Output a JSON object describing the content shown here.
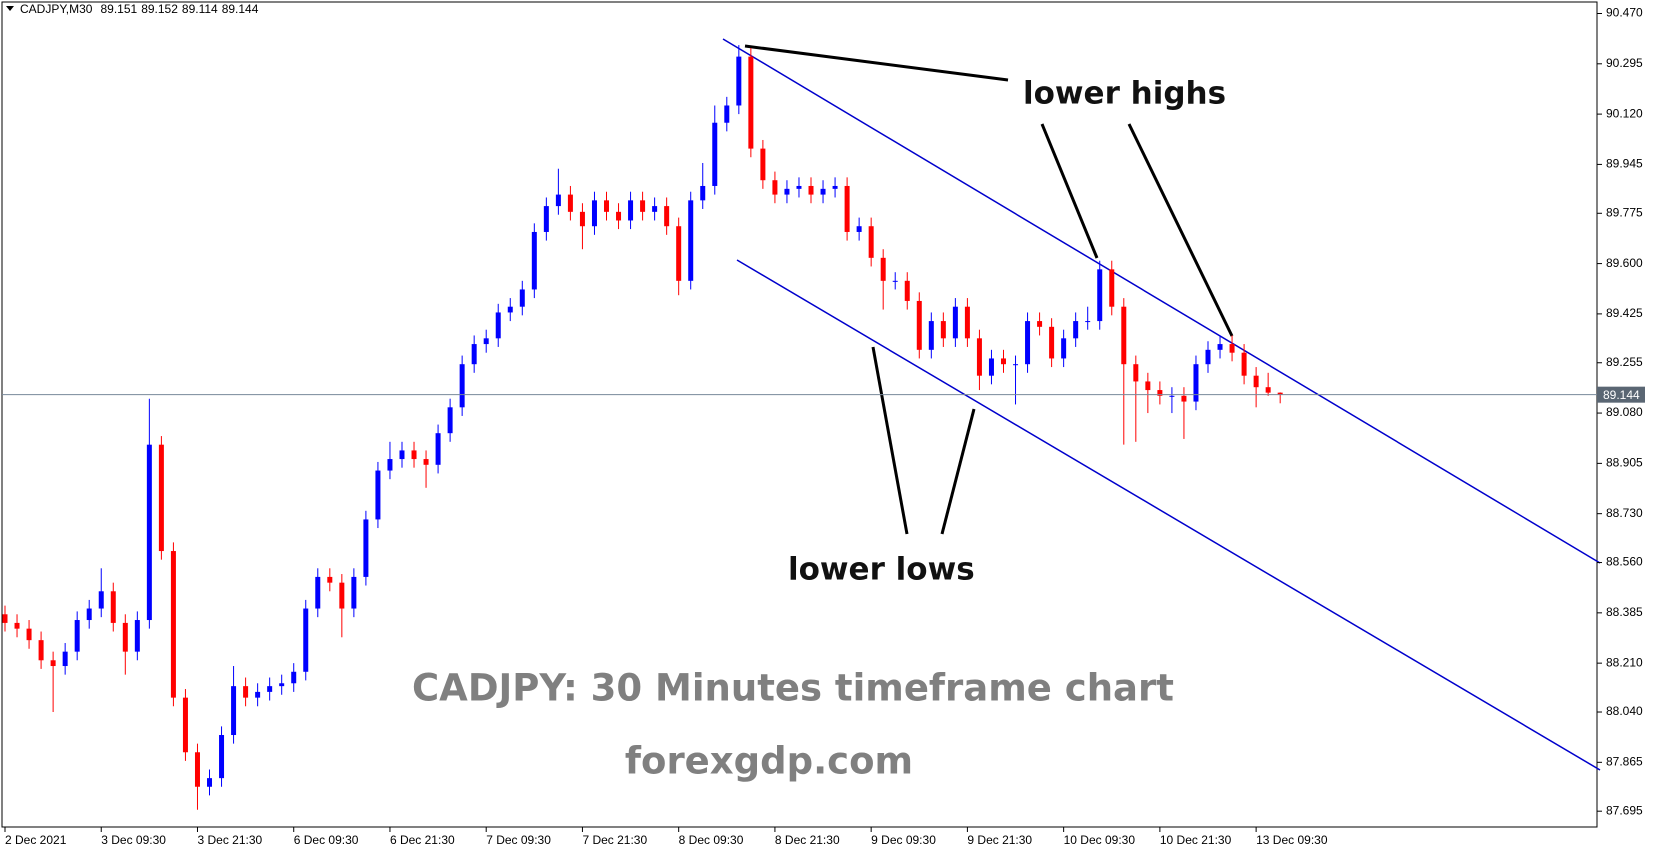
{
  "chart_data": {
    "type": "candlestick",
    "symbol": "CADJPY,M30",
    "annotations": [
      "lower highs",
      "lower lows",
      "CADJPY: 30 Minutes timeframe chart",
      "forexgdp.com"
    ],
    "up_color": "#0000ff",
    "down_color": "#ff0000",
    "ylim": [
      87.64,
      90.51
    ],
    "yticks": [
      {
        "value": 90.47,
        "label": "90.470"
      },
      90.295,
      {
        "value": 90.12,
        "label": "90.120"
      },
      89.945,
      89.775,
      {
        "value": 89.6,
        "label": "89.600"
      },
      89.425,
      89.255,
      {
        "value": 89.08,
        "label": "89.080"
      },
      88.905,
      {
        "value": 88.73,
        "label": "88.730"
      },
      {
        "value": 88.56,
        "label": "88.560"
      },
      88.385,
      {
        "value": 88.21,
        "label": "88.210"
      },
      {
        "value": 88.04,
        "label": "88.040"
      },
      87.865,
      87.695
    ],
    "categories": [
      "2 Dec 2021",
      null,
      null,
      null,
      null,
      null,
      null,
      null,
      "3 Dec 09:30",
      null,
      null,
      null,
      null,
      null,
      null,
      null,
      "3 Dec 21:30",
      null,
      null,
      null,
      null,
      null,
      null,
      null,
      "6 Dec 09:30",
      null,
      null,
      null,
      null,
      null,
      null,
      null,
      "6 Dec 21:30",
      null,
      null,
      null,
      null,
      null,
      null,
      null,
      "7 Dec 09:30",
      null,
      null,
      null,
      null,
      null,
      null,
      null,
      "7 Dec 21:30",
      null,
      null,
      null,
      null,
      null,
      null,
      null,
      "8 Dec 09:30",
      null,
      null,
      null,
      null,
      null,
      null,
      null,
      "8 Dec 21:30",
      null,
      null,
      null,
      null,
      null,
      null,
      null,
      "9 Dec 09:30",
      null,
      null,
      null,
      null,
      null,
      null,
      null,
      "9 Dec 21:30",
      null,
      null,
      null,
      null,
      null,
      null,
      null,
      "10 Dec 09:30",
      null,
      null,
      null,
      null,
      null,
      null,
      null,
      "10 Dec 21:30",
      null,
      null,
      null,
      null,
      null,
      null,
      null,
      "13 Dec 09:30",
      null,
      null
    ],
    "open": [
      88.38,
      88.35,
      88.33,
      88.29,
      88.22,
      88.2,
      88.25,
      88.36,
      88.4,
      88.46,
      88.35,
      88.25,
      88.36,
      88.97,
      88.6,
      88.09,
      87.9,
      87.78,
      87.81,
      87.96,
      88.13,
      88.09,
      88.11,
      88.13,
      88.14,
      88.18,
      88.4,
      88.51,
      88.49,
      88.4,
      88.51,
      88.71,
      88.88,
      88.92,
      88.95,
      88.92,
      88.9,
      89.01,
      89.1,
      89.25,
      89.32,
      89.34,
      89.43,
      89.45,
      89.51,
      89.71,
      89.8,
      89.84,
      89.78,
      89.73,
      89.82,
      89.78,
      89.75,
      89.82,
      89.78,
      89.8,
      89.73,
      89.54,
      89.82,
      89.87,
      90.09,
      90.15,
      90.32,
      90.0,
      89.89,
      89.84,
      89.86,
      89.87,
      89.84,
      89.86,
      89.87,
      89.71,
      89.73,
      89.62,
      89.54,
      89.54,
      89.47,
      89.3,
      89.4,
      89.34,
      89.45,
      89.34,
      89.21,
      89.27,
      89.25,
      89.25,
      89.4,
      89.38,
      89.27,
      89.34,
      89.4,
      89.4,
      89.58,
      89.45,
      89.25,
      89.19,
      89.16,
      89.14,
      89.14,
      89.12,
      89.25,
      89.3,
      89.32,
      89.29,
      89.21,
      89.17,
      89.151
    ],
    "high": [
      88.41,
      88.38,
      88.36,
      88.32,
      88.25,
      88.28,
      88.39,
      88.43,
      88.54,
      88.49,
      88.38,
      88.39,
      89.13,
      89.0,
      88.63,
      88.12,
      87.93,
      87.84,
      87.99,
      88.2,
      88.16,
      88.14,
      88.16,
      88.17,
      88.21,
      88.43,
      88.54,
      88.54,
      88.52,
      88.54,
      88.74,
      88.91,
      88.98,
      88.98,
      88.98,
      88.95,
      89.04,
      89.13,
      89.28,
      89.35,
      89.37,
      89.46,
      89.48,
      89.54,
      89.74,
      89.83,
      89.93,
      89.87,
      89.81,
      89.85,
      89.85,
      89.81,
      89.85,
      89.85,
      89.83,
      89.83,
      89.76,
      89.85,
      89.95,
      90.15,
      90.18,
      90.36,
      90.35,
      90.03,
      89.92,
      89.89,
      89.9,
      89.9,
      89.89,
      89.9,
      89.9,
      89.76,
      89.76,
      89.65,
      89.57,
      89.57,
      89.5,
      89.43,
      89.43,
      89.48,
      89.48,
      89.37,
      89.3,
      89.3,
      89.28,
      89.43,
      89.43,
      89.41,
      89.37,
      89.43,
      89.45,
      89.61,
      89.61,
      89.48,
      89.28,
      89.22,
      89.19,
      89.17,
      89.17,
      89.28,
      89.33,
      89.35,
      89.35,
      89.32,
      89.24,
      89.22,
      89.152
    ],
    "low": [
      88.32,
      88.3,
      88.26,
      88.19,
      88.04,
      88.17,
      88.22,
      88.33,
      88.37,
      88.32,
      88.17,
      88.22,
      88.33,
      88.57,
      88.06,
      87.87,
      87.7,
      87.75,
      87.78,
      87.93,
      88.06,
      88.06,
      88.08,
      88.1,
      88.11,
      88.15,
      88.37,
      88.46,
      88.3,
      88.37,
      88.48,
      88.68,
      88.85,
      88.89,
      88.89,
      88.82,
      88.87,
      88.98,
      89.07,
      89.22,
      89.29,
      89.31,
      89.4,
      89.42,
      89.48,
      89.68,
      89.77,
      89.75,
      89.65,
      89.7,
      89.75,
      89.72,
      89.72,
      89.75,
      89.75,
      89.7,
      89.49,
      89.51,
      89.79,
      89.84,
      90.06,
      90.12,
      89.97,
      89.86,
      89.81,
      89.81,
      89.83,
      89.81,
      89.81,
      89.83,
      89.68,
      89.68,
      89.59,
      89.44,
      89.51,
      89.44,
      89.27,
      89.27,
      89.31,
      89.31,
      89.31,
      89.16,
      89.18,
      89.22,
      89.11,
      89.22,
      89.35,
      89.24,
      89.24,
      89.31,
      89.37,
      89.37,
      89.42,
      88.97,
      88.98,
      89.08,
      89.11,
      89.08,
      88.99,
      89.09,
      89.22,
      89.27,
      89.26,
      89.18,
      89.1,
      89.14,
      89.114
    ],
    "close": [
      88.35,
      88.33,
      88.29,
      88.22,
      88.2,
      88.25,
      88.36,
      88.4,
      88.46,
      88.35,
      88.25,
      88.36,
      88.97,
      88.6,
      88.09,
      87.9,
      87.78,
      87.81,
      87.96,
      88.13,
      88.09,
      88.11,
      88.13,
      88.14,
      88.18,
      88.4,
      88.51,
      88.49,
      88.4,
      88.51,
      88.71,
      88.88,
      88.92,
      88.95,
      88.92,
      88.9,
      89.01,
      89.1,
      89.25,
      89.32,
      89.34,
      89.43,
      89.45,
      89.51,
      89.71,
      89.8,
      89.84,
      89.78,
      89.73,
      89.82,
      89.78,
      89.75,
      89.82,
      89.78,
      89.8,
      89.73,
      89.54,
      89.82,
      89.87,
      90.09,
      90.15,
      90.32,
      90.0,
      89.89,
      89.84,
      89.86,
      89.87,
      89.84,
      89.86,
      89.87,
      89.71,
      89.73,
      89.62,
      89.54,
      89.54,
      89.47,
      89.3,
      89.4,
      89.34,
      89.45,
      89.34,
      89.21,
      89.27,
      89.25,
      89.25,
      89.4,
      89.38,
      89.27,
      89.34,
      89.4,
      89.4,
      89.58,
      89.45,
      89.25,
      89.19,
      89.16,
      89.14,
      89.14,
      89.12,
      89.25,
      89.3,
      89.32,
      89.29,
      89.21,
      89.17,
      89.151,
      89.144
    ]
  }
}
